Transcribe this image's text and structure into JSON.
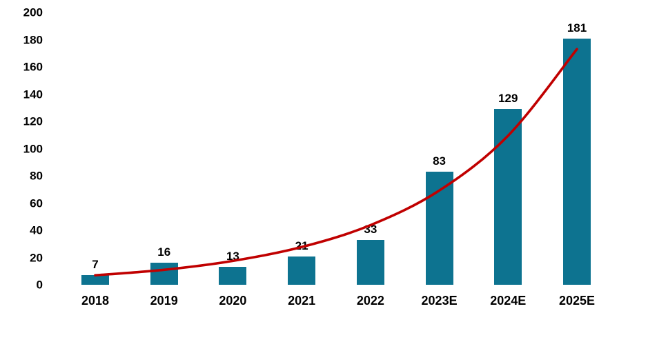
{
  "chart_data": {
    "type": "bar",
    "title": "",
    "xlabel": "",
    "ylabel": "",
    "categories": [
      "2018",
      "2019",
      "2020",
      "2021",
      "2022",
      "2023E",
      "2024E",
      "2025E"
    ],
    "series": [
      {
        "name": "bars",
        "type": "bar",
        "values": [
          7,
          16,
          13,
          21,
          33,
          83,
          129,
          181
        ]
      },
      {
        "name": "trend",
        "type": "line",
        "values": [
          7,
          11,
          17.5,
          27.7,
          43.8,
          69.2,
          109.5,
          173
        ]
      }
    ],
    "data_labels": [
      "7",
      "16",
      "13",
      "21",
      "33",
      "83",
      "129",
      "181"
    ],
    "ylim": [
      0,
      200
    ],
    "yticks": [
      0,
      20,
      40,
      60,
      80,
      100,
      120,
      140,
      160,
      180,
      200
    ],
    "grid": false,
    "legend": false,
    "bar_color": "#0d7390",
    "line_color": "#c00000",
    "label_color": "#000000",
    "background_color": "#ffffff"
  }
}
